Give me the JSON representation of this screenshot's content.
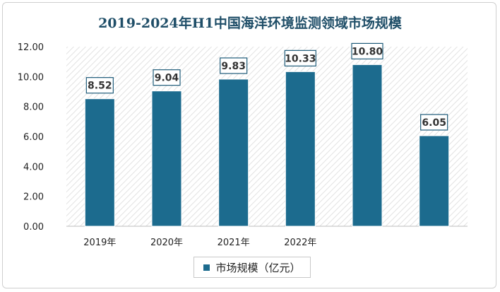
{
  "chart_data": {
    "type": "bar",
    "title": "2019-2024年H1中国海洋环境监测领域市场规模",
    "categories": [
      "2019年",
      "2020年",
      "2021年",
      "2022年",
      "",
      ""
    ],
    "series": [
      {
        "name": "市场规模（亿元）",
        "values": [
          8.52,
          9.04,
          9.83,
          10.33,
          10.8,
          6.05
        ]
      }
    ],
    "data_labels": [
      "8.52",
      "9.04",
      "9.83",
      "10.33",
      "10.80",
      "6.05"
    ],
    "y_ticks": [
      "0.00",
      "2.00",
      "4.00",
      "6.00",
      "8.00",
      "10.00",
      "12.00"
    ],
    "ylim": [
      0,
      12
    ],
    "xlabel": "",
    "ylabel": "",
    "grid": false,
    "plot_background": "diagonal-hatch",
    "legend_position": "bottom",
    "colors": {
      "bar": "#1c6b8e",
      "label_border": "#1f5c7a",
      "title": "#1f4e68"
    }
  }
}
